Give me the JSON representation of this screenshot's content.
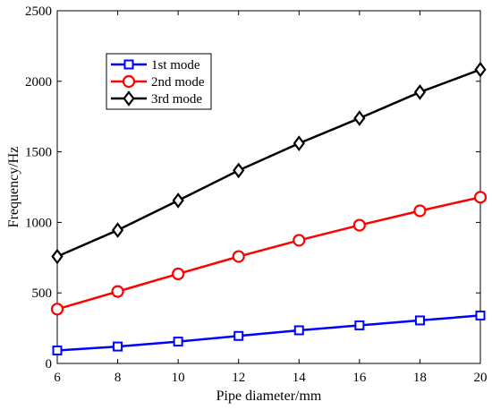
{
  "chart_data": {
    "type": "line",
    "title": "",
    "xlabel": "Pipe diameter/mm",
    "ylabel": "Frequency/Hz",
    "xlim": [
      6,
      20
    ],
    "ylim": [
      0,
      2500
    ],
    "xticks": [
      6,
      8,
      10,
      12,
      14,
      16,
      18,
      20
    ],
    "yticks": [
      0,
      500,
      1000,
      1500,
      2000,
      2500
    ],
    "grid": false,
    "legend_position": "upper-left-inside",
    "x": [
      6,
      8,
      10,
      12,
      14,
      16,
      18,
      20
    ],
    "series": [
      {
        "name": "1st mode",
        "color": "#0000ff",
        "marker": "square",
        "values": [
          92,
          120,
          155,
          195,
          235,
          270,
          305,
          340
        ]
      },
      {
        "name": "2nd mode",
        "color": "#ff0000",
        "marker": "circle",
        "values": [
          385,
          510,
          635,
          758,
          873,
          980,
          1082,
          1178
        ]
      },
      {
        "name": "3rd mode",
        "color": "#000000",
        "marker": "diamond",
        "values": [
          758,
          945,
          1155,
          1368,
          1560,
          1738,
          1923,
          2083
        ]
      }
    ]
  }
}
